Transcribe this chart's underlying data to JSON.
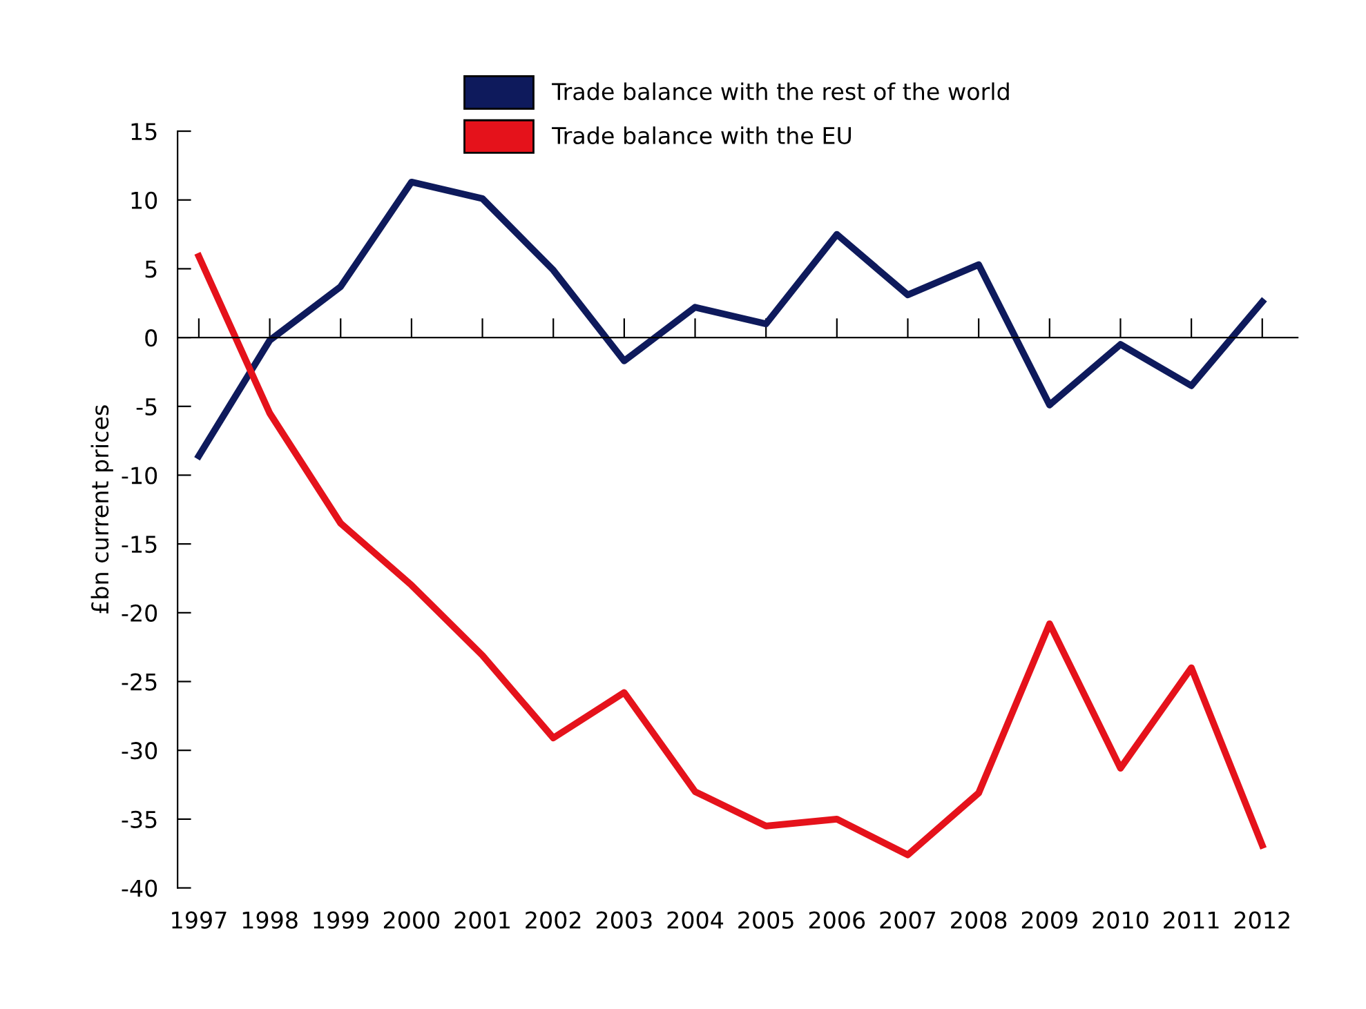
{
  "chart_data": {
    "type": "line",
    "ylabel": "£bn current prices",
    "categories": [
      "1997",
      "1998",
      "1999",
      "2000",
      "2001",
      "2002",
      "2003",
      "2004",
      "2005",
      "2006",
      "2007",
      "2008",
      "2009",
      "2010",
      "2011",
      "2012"
    ],
    "series": [
      {
        "name": "Trade balance with the rest of the world",
        "color": "#0e1a5c",
        "values": [
          -8.6,
          -0.2,
          3.7,
          11.3,
          10.1,
          4.9,
          -1.7,
          2.2,
          1.0,
          7.5,
          3.1,
          5.3,
          -4.9,
          -0.5,
          -3.5,
          2.6
        ]
      },
      {
        "name": "Trade balance with the EU",
        "color": "#e5121b",
        "values": [
          5.9,
          -5.5,
          -13.5,
          -18,
          -23.1,
          -29.1,
          -25.8,
          -33,
          -35.5,
          -35,
          -37.6,
          -33.1,
          -20.8,
          -31.3,
          -24,
          -36.9
        ]
      }
    ],
    "ylim": [
      -40,
      15
    ],
    "yticks": [
      -40,
      -35,
      -30,
      -25,
      -20,
      -15,
      -10,
      -5,
      0,
      5,
      10,
      15
    ],
    "legend": "top",
    "marker": "none",
    "line_style": "solid"
  }
}
